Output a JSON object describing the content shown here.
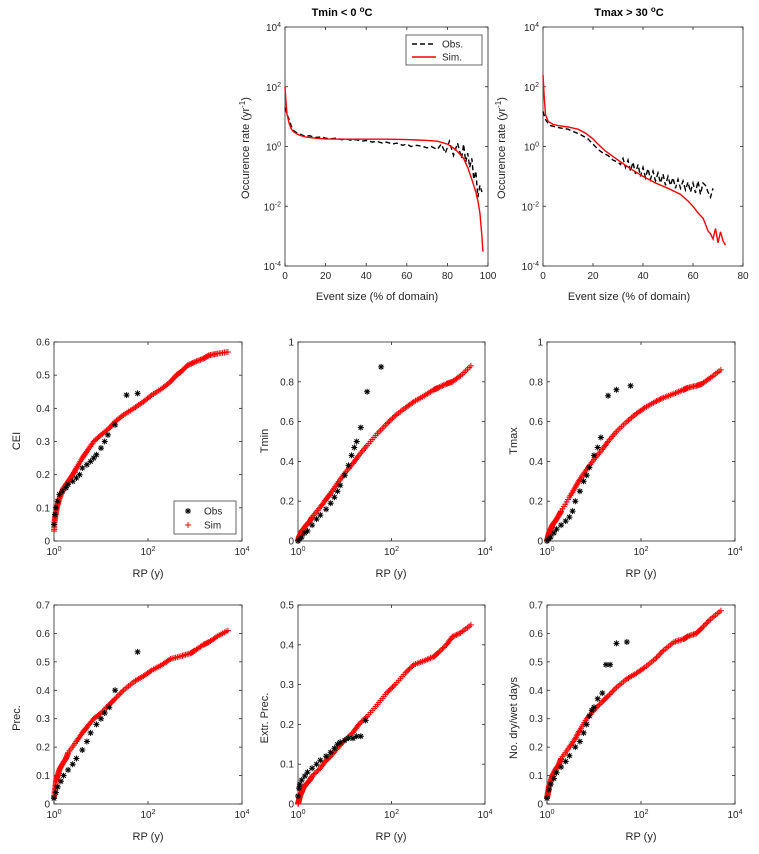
{
  "colors": {
    "obs": "#000000",
    "sim": "#ff0000",
    "axis": "#262626"
  },
  "chart_data": [
    {
      "type": "line",
      "id": "tmin-occ",
      "yscale": "log",
      "title": "Tmin < 0 °C",
      "title_base": "Tmin < 0 ",
      "title_sup": "o",
      "title_unit": "C",
      "xlabel": "Event size (% of domain)",
      "ylabel": "Occurence rate (yr",
      "ylabel_sup": "-1",
      "ylabel_end": ")",
      "xlim": [
        0,
        100
      ],
      "xticks": [
        0,
        20,
        40,
        60,
        80,
        100
      ],
      "ylim_exp": [
        -4,
        4
      ],
      "yticks_exp": [
        -4,
        -2,
        0,
        2,
        4
      ],
      "legend": [
        "Obs.",
        "Sim."
      ],
      "legend_position": "top-right",
      "series": [
        {
          "name": "Obs.",
          "style": "dashed",
          "x": [
            0,
            1,
            2,
            3,
            4,
            6,
            8,
            10,
            12,
            15,
            18,
            20,
            22,
            25,
            28,
            30,
            33,
            35,
            38,
            40,
            43,
            45,
            48,
            50,
            53,
            55,
            58,
            60,
            62,
            65,
            68,
            70,
            72,
            75,
            77,
            79,
            81,
            83,
            85,
            87,
            88,
            89,
            90,
            91,
            92,
            93,
            94,
            95,
            96,
            97
          ],
          "y": [
            20,
            12,
            8,
            5,
            3.5,
            2.8,
            2.5,
            2.2,
            2.3,
            2.0,
            2.1,
            1.9,
            1.8,
            1.9,
            1.7,
            1.8,
            1.6,
            1.7,
            1.5,
            1.6,
            1.4,
            1.5,
            1.3,
            1.4,
            1.2,
            1.3,
            1.1,
            1.2,
            1.0,
            1.1,
            1.0,
            0.9,
            1.0,
            0.8,
            1.2,
            0.6,
            1.5,
            0.5,
            1.3,
            0.4,
            1.2,
            0.3,
            0.6,
            0.2,
            0.4,
            0.08,
            0.15,
            0.02,
            0.05,
            0.03
          ]
        },
        {
          "name": "Sim.",
          "style": "solid",
          "x": [
            0,
            0.5,
            1,
            2,
            3,
            4,
            6,
            8,
            10,
            15,
            20,
            30,
            40,
            50,
            60,
            65,
            70,
            75,
            80,
            84,
            88,
            90,
            92,
            94,
            95,
            96,
            97,
            97.5
          ],
          "y": [
            100,
            30,
            12,
            6,
            4,
            3.2,
            2.6,
            2.3,
            2.1,
            1.9,
            1.8,
            1.75,
            1.75,
            1.75,
            1.7,
            1.65,
            1.6,
            1.5,
            1.2,
            0.8,
            0.4,
            0.2,
            0.08,
            0.03,
            0.015,
            0.006,
            0.001,
            0.0003
          ]
        }
      ]
    },
    {
      "type": "line",
      "id": "tmax-occ",
      "yscale": "log",
      "title": "Tmax > 30 °C",
      "title_base": "Tmax > 30 ",
      "title_sup": "o",
      "title_unit": "C",
      "xlabel": "Event size (% of domain)",
      "ylabel": "Occurence rate (yr",
      "ylabel_sup": "-1",
      "ylabel_end": ")",
      "xlim": [
        0,
        80
      ],
      "xticks": [
        0,
        20,
        40,
        60,
        80
      ],
      "ylim_exp": [
        -4,
        4
      ],
      "yticks_exp": [
        -4,
        -2,
        0,
        2,
        4
      ],
      "series": [
        {
          "name": "Obs.",
          "style": "dashed",
          "x": [
            0,
            1,
            2,
            3,
            5,
            8,
            10,
            12,
            15,
            18,
            20,
            22,
            24,
            26,
            28,
            30,
            31,
            32,
            33,
            34,
            35,
            36,
            37,
            38,
            39,
            40,
            41,
            42,
            43,
            44,
            45,
            46,
            47,
            48,
            49,
            50,
            51,
            52,
            53,
            54,
            55,
            56,
            57,
            58,
            59,
            60,
            61,
            62,
            63,
            64,
            65,
            66,
            67,
            68
          ],
          "y": [
            15,
            8,
            6,
            5,
            4.5,
            4,
            3.8,
            3.2,
            2.5,
            1.8,
            1.2,
            0.8,
            0.6,
            0.5,
            0.35,
            0.3,
            0.25,
            0.4,
            0.2,
            0.35,
            0.15,
            0.3,
            0.12,
            0.25,
            0.1,
            0.2,
            0.09,
            0.18,
            0.08,
            0.15,
            0.07,
            0.13,
            0.06,
            0.12,
            0.05,
            0.1,
            0.05,
            0.09,
            0.04,
            0.08,
            0.04,
            0.07,
            0.035,
            0.065,
            0.03,
            0.06,
            0.028,
            0.07,
            0.025,
            0.06,
            0.05,
            0.03,
            0.02,
            0.04
          ]
        },
        {
          "name": "Sim.",
          "style": "solid",
          "x": [
            0,
            0.5,
            1,
            2,
            4,
            6,
            10,
            14,
            17,
            20,
            22,
            25,
            30,
            35,
            40,
            45,
            50,
            55,
            58,
            60,
            62,
            64,
            65,
            66,
            67,
            68,
            69,
            70,
            71,
            72,
            73
          ],
          "y": [
            250,
            40,
            12,
            7,
            5.5,
            5,
            4.5,
            3.8,
            2.8,
            1.8,
            1.2,
            0.7,
            0.35,
            0.18,
            0.1,
            0.06,
            0.04,
            0.025,
            0.015,
            0.01,
            0.006,
            0.004,
            0.0025,
            0.0015,
            0.0012,
            0.0008,
            0.0018,
            0.0006,
            0.0014,
            0.0007,
            0.0005
          ]
        }
      ]
    },
    {
      "type": "scatter",
      "id": "cei",
      "xscale": "log",
      "ylabel": "CEI",
      "xlabel": "RP (y)",
      "ylim": [
        0,
        0.6
      ],
      "yticks": [
        0,
        0.1,
        0.2,
        0.3,
        0.4,
        0.5,
        0.6
      ],
      "xlim_exp": [
        0,
        4
      ],
      "xticks_exp": [
        0,
        2,
        4
      ],
      "legend": [
        "Obs",
        "Sim"
      ],
      "legend_position": "bottom-right",
      "sim": {
        "rp": [
          1,
          1.03,
          1.08,
          1.15,
          1.25,
          1.4,
          1.6,
          2,
          2.5,
          3,
          4,
          5,
          7,
          10,
          15,
          20,
          30,
          50,
          80,
          120,
          200,
          300,
          400,
          500,
          700,
          1000,
          1500,
          2000,
          3000,
          5000
        ],
        "v": [
          0.03,
          0.06,
          0.08,
          0.1,
          0.12,
          0.14,
          0.16,
          0.18,
          0.2,
          0.22,
          0.25,
          0.27,
          0.3,
          0.32,
          0.34,
          0.36,
          0.38,
          0.4,
          0.42,
          0.44,
          0.46,
          0.48,
          0.5,
          0.51,
          0.53,
          0.54,
          0.55,
          0.56,
          0.565,
          0.57
        ]
      },
      "obs": {
        "rp": [
          1,
          1.05,
          1.1,
          1.2,
          1.3,
          1.5,
          1.8,
          2,
          2.5,
          3,
          3.5,
          4,
          5,
          6,
          7,
          8,
          10,
          12,
          14,
          20,
          35,
          60
        ],
        "v": [
          0.05,
          0.08,
          0.1,
          0.12,
          0.14,
          0.15,
          0.16,
          0.17,
          0.18,
          0.19,
          0.2,
          0.22,
          0.23,
          0.24,
          0.25,
          0.26,
          0.28,
          0.3,
          0.32,
          0.35,
          0.44,
          0.445
        ]
      }
    },
    {
      "type": "scatter",
      "id": "tmin",
      "xscale": "log",
      "ylabel": "Tmin",
      "xlabel": "RP (y)",
      "ylim": [
        0,
        1
      ],
      "yticks": [
        0,
        0.2,
        0.4,
        0.6,
        0.8,
        1
      ],
      "xlim_exp": [
        0,
        4
      ],
      "xticks_exp": [
        0,
        2,
        4
      ],
      "sim": {
        "rp": [
          1,
          1.05,
          1.1,
          1.2,
          1.3,
          1.5,
          1.8,
          2,
          3,
          4,
          5,
          7,
          10,
          15,
          20,
          30,
          50,
          80,
          120,
          200,
          300,
          500,
          800,
          1000,
          1500,
          2000,
          3000,
          5000
        ],
        "v": [
          0,
          0.02,
          0.03,
          0.05,
          0.06,
          0.08,
          0.1,
          0.12,
          0.17,
          0.21,
          0.24,
          0.29,
          0.34,
          0.39,
          0.43,
          0.48,
          0.54,
          0.59,
          0.63,
          0.67,
          0.7,
          0.73,
          0.76,
          0.77,
          0.79,
          0.8,
          0.83,
          0.88
        ]
      },
      "obs": {
        "rp": [
          1,
          1.1,
          1.2,
          1.4,
          1.6,
          2,
          2.5,
          3,
          4,
          5,
          6,
          7,
          8,
          10,
          12,
          14,
          16,
          18,
          22,
          30,
          60
        ],
        "v": [
          0,
          0.01,
          0.02,
          0.04,
          0.05,
          0.08,
          0.11,
          0.13,
          0.16,
          0.19,
          0.22,
          0.25,
          0.28,
          0.33,
          0.38,
          0.43,
          0.47,
          0.5,
          0.57,
          0.75,
          0.875
        ]
      }
    },
    {
      "type": "scatter",
      "id": "tmax",
      "xscale": "log",
      "ylabel": "Tmax",
      "xlabel": "RP (y)",
      "ylim": [
        0,
        1
      ],
      "yticks": [
        0,
        0.2,
        0.4,
        0.6,
        0.8,
        1
      ],
      "xlim_exp": [
        0,
        4
      ],
      "xticks_exp": [
        0,
        2,
        4
      ],
      "sim": {
        "rp": [
          1,
          1.05,
          1.1,
          1.2,
          1.3,
          1.5,
          1.8,
          2,
          3,
          4,
          5,
          7,
          10,
          15,
          20,
          30,
          50,
          80,
          120,
          200,
          300,
          500,
          800,
          1000,
          1500,
          2000,
          3000,
          5000
        ],
        "v": [
          0,
          0.02,
          0.04,
          0.06,
          0.08,
          0.1,
          0.13,
          0.15,
          0.22,
          0.27,
          0.31,
          0.36,
          0.41,
          0.46,
          0.5,
          0.55,
          0.6,
          0.64,
          0.67,
          0.7,
          0.72,
          0.74,
          0.76,
          0.77,
          0.78,
          0.79,
          0.82,
          0.86
        ]
      },
      "obs": {
        "rp": [
          1,
          1.1,
          1.2,
          1.4,
          1.6,
          2,
          2.5,
          3,
          3.5,
          4,
          5,
          6,
          7,
          8,
          10,
          12,
          14,
          20,
          30,
          60
        ],
        "v": [
          0,
          0.01,
          0.02,
          0.04,
          0.06,
          0.08,
          0.1,
          0.12,
          0.15,
          0.2,
          0.25,
          0.3,
          0.33,
          0.37,
          0.43,
          0.47,
          0.52,
          0.73,
          0.76,
          0.78
        ]
      }
    },
    {
      "type": "scatter",
      "id": "prec",
      "xscale": "log",
      "ylabel": "Prec.",
      "xlabel": "RP (y)",
      "ylim": [
        0,
        0.7
      ],
      "yticks": [
        0,
        0.1,
        0.2,
        0.3,
        0.4,
        0.5,
        0.6,
        0.7
      ],
      "xlim_exp": [
        0,
        4
      ],
      "xticks_exp": [
        0,
        2,
        4
      ],
      "sim": {
        "rp": [
          1,
          1.05,
          1.1,
          1.2,
          1.3,
          1.5,
          1.8,
          2,
          3,
          4,
          5,
          7,
          10,
          15,
          20,
          30,
          50,
          80,
          120,
          200,
          300,
          500,
          800,
          1000,
          1500,
          2000,
          3000,
          5000
        ],
        "v": [
          0.02,
          0.05,
          0.08,
          0.1,
          0.12,
          0.14,
          0.16,
          0.18,
          0.22,
          0.25,
          0.27,
          0.3,
          0.32,
          0.35,
          0.37,
          0.4,
          0.43,
          0.45,
          0.47,
          0.49,
          0.51,
          0.52,
          0.53,
          0.54,
          0.56,
          0.57,
          0.59,
          0.61
        ]
      },
      "obs": {
        "rp": [
          1,
          1.1,
          1.2,
          1.4,
          1.6,
          2,
          2.5,
          3,
          4,
          5,
          6,
          8,
          10,
          12,
          15,
          20,
          60
        ],
        "v": [
          0.02,
          0.04,
          0.06,
          0.08,
          0.1,
          0.12,
          0.14,
          0.16,
          0.19,
          0.22,
          0.25,
          0.28,
          0.3,
          0.32,
          0.34,
          0.4,
          0.535
        ]
      }
    },
    {
      "type": "scatter",
      "id": "extr-prec",
      "xscale": "log",
      "ylabel": "Extr. Prec.",
      "xlabel": "RP (y)",
      "ylim": [
        0,
        0.5
      ],
      "yticks": [
        0,
        0.1,
        0.2,
        0.3,
        0.4,
        0.5
      ],
      "xlim_exp": [
        0,
        4
      ],
      "xticks_exp": [
        0,
        2,
        4
      ],
      "sim": {
        "rp": [
          1,
          1.05,
          1.1,
          1.2,
          1.3,
          1.5,
          1.8,
          2,
          3,
          4,
          5,
          7,
          10,
          15,
          20,
          30,
          50,
          80,
          120,
          200,
          300,
          500,
          800,
          1000,
          1500,
          2000,
          3000,
          5000
        ],
        "v": [
          0,
          0.01,
          0.02,
          0.03,
          0.04,
          0.05,
          0.06,
          0.07,
          0.09,
          0.11,
          0.12,
          0.14,
          0.16,
          0.18,
          0.2,
          0.22,
          0.25,
          0.28,
          0.3,
          0.33,
          0.35,
          0.36,
          0.37,
          0.38,
          0.4,
          0.42,
          0.43,
          0.45
        ]
      },
      "obs": {
        "rp": [
          1,
          1.05,
          1.1,
          1.2,
          1.4,
          1.6,
          2,
          2.5,
          3,
          4,
          5,
          6,
          7,
          8,
          10,
          12,
          15,
          18,
          22,
          28
        ],
        "v": [
          0.02,
          0.04,
          0.05,
          0.06,
          0.07,
          0.08,
          0.09,
          0.1,
          0.11,
          0.12,
          0.13,
          0.14,
          0.15,
          0.155,
          0.16,
          0.165,
          0.165,
          0.17,
          0.17,
          0.21
        ]
      }
    },
    {
      "type": "scatter",
      "id": "dry-wet",
      "xscale": "log",
      "ylabel": "No. dry/wet days",
      "xlabel": "RP (y)",
      "ylim": [
        0,
        0.7
      ],
      "yticks": [
        0,
        0.1,
        0.2,
        0.3,
        0.4,
        0.5,
        0.6,
        0.7
      ],
      "xlim_exp": [
        0,
        4
      ],
      "xticks_exp": [
        0,
        2,
        4
      ],
      "sim": {
        "rp": [
          1,
          1.05,
          1.1,
          1.2,
          1.3,
          1.5,
          1.8,
          2,
          3,
          4,
          5,
          7,
          10,
          15,
          20,
          30,
          50,
          80,
          120,
          200,
          300,
          500,
          800,
          1000,
          1500,
          2000,
          3000,
          5000
        ],
        "v": [
          0.02,
          0.04,
          0.06,
          0.08,
          0.1,
          0.12,
          0.14,
          0.16,
          0.2,
          0.23,
          0.26,
          0.3,
          0.33,
          0.36,
          0.38,
          0.41,
          0.44,
          0.46,
          0.48,
          0.51,
          0.54,
          0.57,
          0.58,
          0.59,
          0.6,
          0.62,
          0.65,
          0.68
        ]
      },
      "obs": {
        "rp": [
          1,
          1.1,
          1.2,
          1.4,
          1.6,
          2,
          2.5,
          3,
          4,
          5,
          6,
          7,
          8,
          9,
          10,
          12,
          15,
          18,
          22,
          30,
          50
        ],
        "v": [
          0.02,
          0.05,
          0.07,
          0.09,
          0.11,
          0.13,
          0.15,
          0.17,
          0.2,
          0.22,
          0.25,
          0.28,
          0.31,
          0.33,
          0.34,
          0.37,
          0.39,
          0.49,
          0.49,
          0.565,
          0.57
        ]
      }
    }
  ]
}
